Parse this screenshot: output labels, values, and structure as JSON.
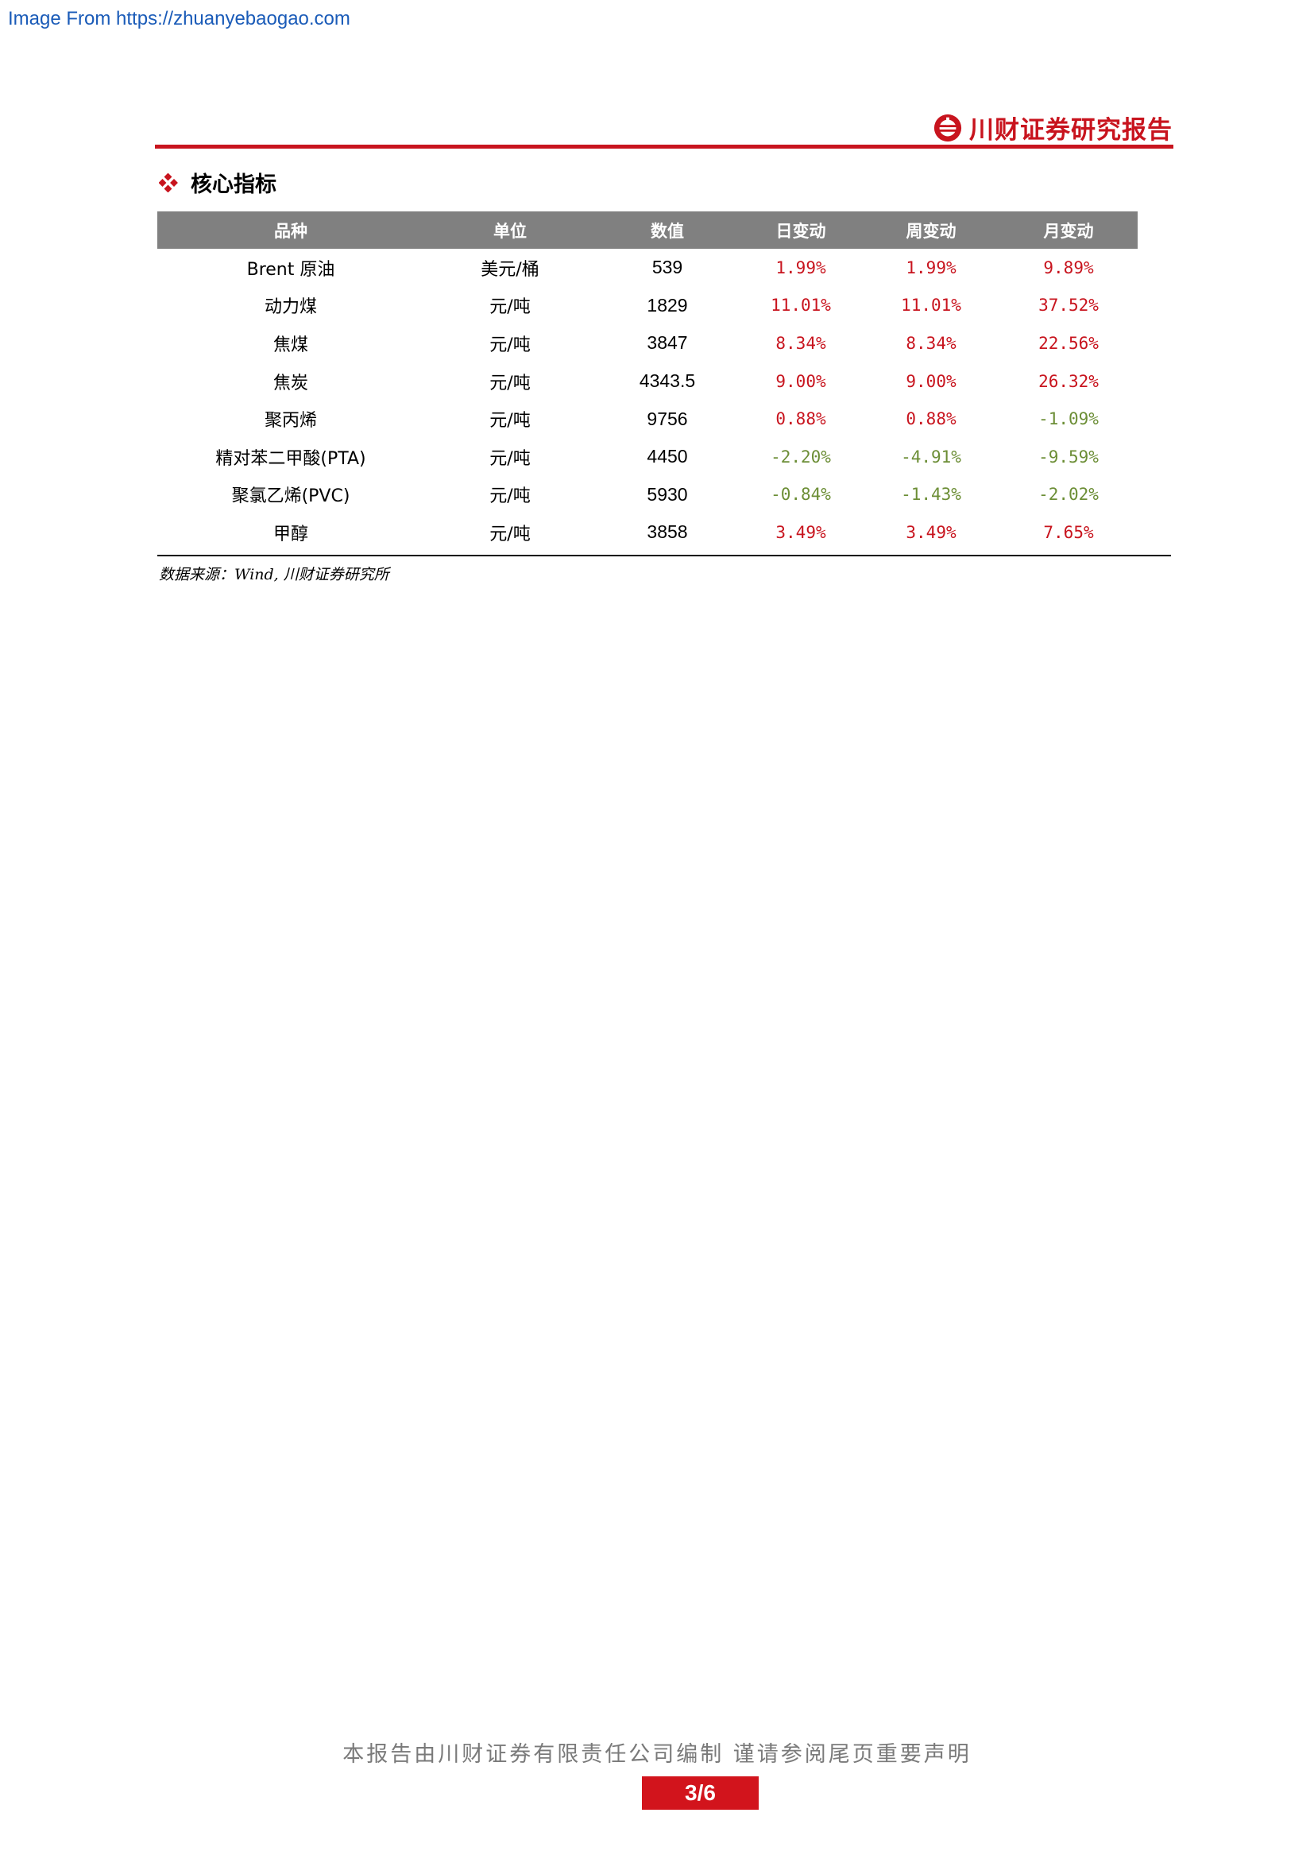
{
  "watermark": "Image From https://zhuanyebaogao.com",
  "brand": {
    "name": "川财证券研究报告",
    "accent_color": "#c8141e",
    "logo_icon": "chuancai-logo"
  },
  "section": {
    "icon": "diamond-bullet-icon",
    "title": "核心指标"
  },
  "table": {
    "headers": [
      "品种",
      "单位",
      "数值",
      "日变动",
      "周变动",
      "月变动"
    ],
    "rows": [
      {
        "name": "Brent 原油",
        "unit": "美元/桶",
        "value": "539",
        "day": "1.99%",
        "week": "1.99%",
        "month": "9.89%"
      },
      {
        "name": "动力煤",
        "unit": "元/吨",
        "value": "1829",
        "day": "11.01%",
        "week": "11.01%",
        "month": "37.52%"
      },
      {
        "name": "焦煤",
        "unit": "元/吨",
        "value": "3847",
        "day": "8.34%",
        "week": "8.34%",
        "month": "22.56%"
      },
      {
        "name": "焦炭",
        "unit": "元/吨",
        "value": "4343.5",
        "day": "9.00%",
        "week": "9.00%",
        "month": "26.32%"
      },
      {
        "name": "聚丙烯",
        "unit": "元/吨",
        "value": "9756",
        "day": "0.88%",
        "week": "0.88%",
        "month": "-1.09%"
      },
      {
        "name": "精对苯二甲酸(PTA)",
        "unit": "元/吨",
        "value": "4450",
        "day": "-2.20%",
        "week": "-4.91%",
        "month": "-9.59%"
      },
      {
        "name": "聚氯乙烯(PVC)",
        "unit": "元/吨",
        "value": "5930",
        "day": "-0.84%",
        "week": "-1.43%",
        "month": "-2.02%"
      },
      {
        "name": "甲醇",
        "unit": "元/吨",
        "value": "3858",
        "day": "3.49%",
        "week": "3.49%",
        "month": "7.65%"
      }
    ],
    "positive_color": "#c8141e",
    "negative_color": "#6c8e36"
  },
  "source_note": "数据来源：Wind, 川财证券研究所",
  "footer": {
    "disclaimer": "本报告由川财证券有限责任公司编制 谨请参阅尾页重要声明",
    "page_number": "3/6"
  }
}
